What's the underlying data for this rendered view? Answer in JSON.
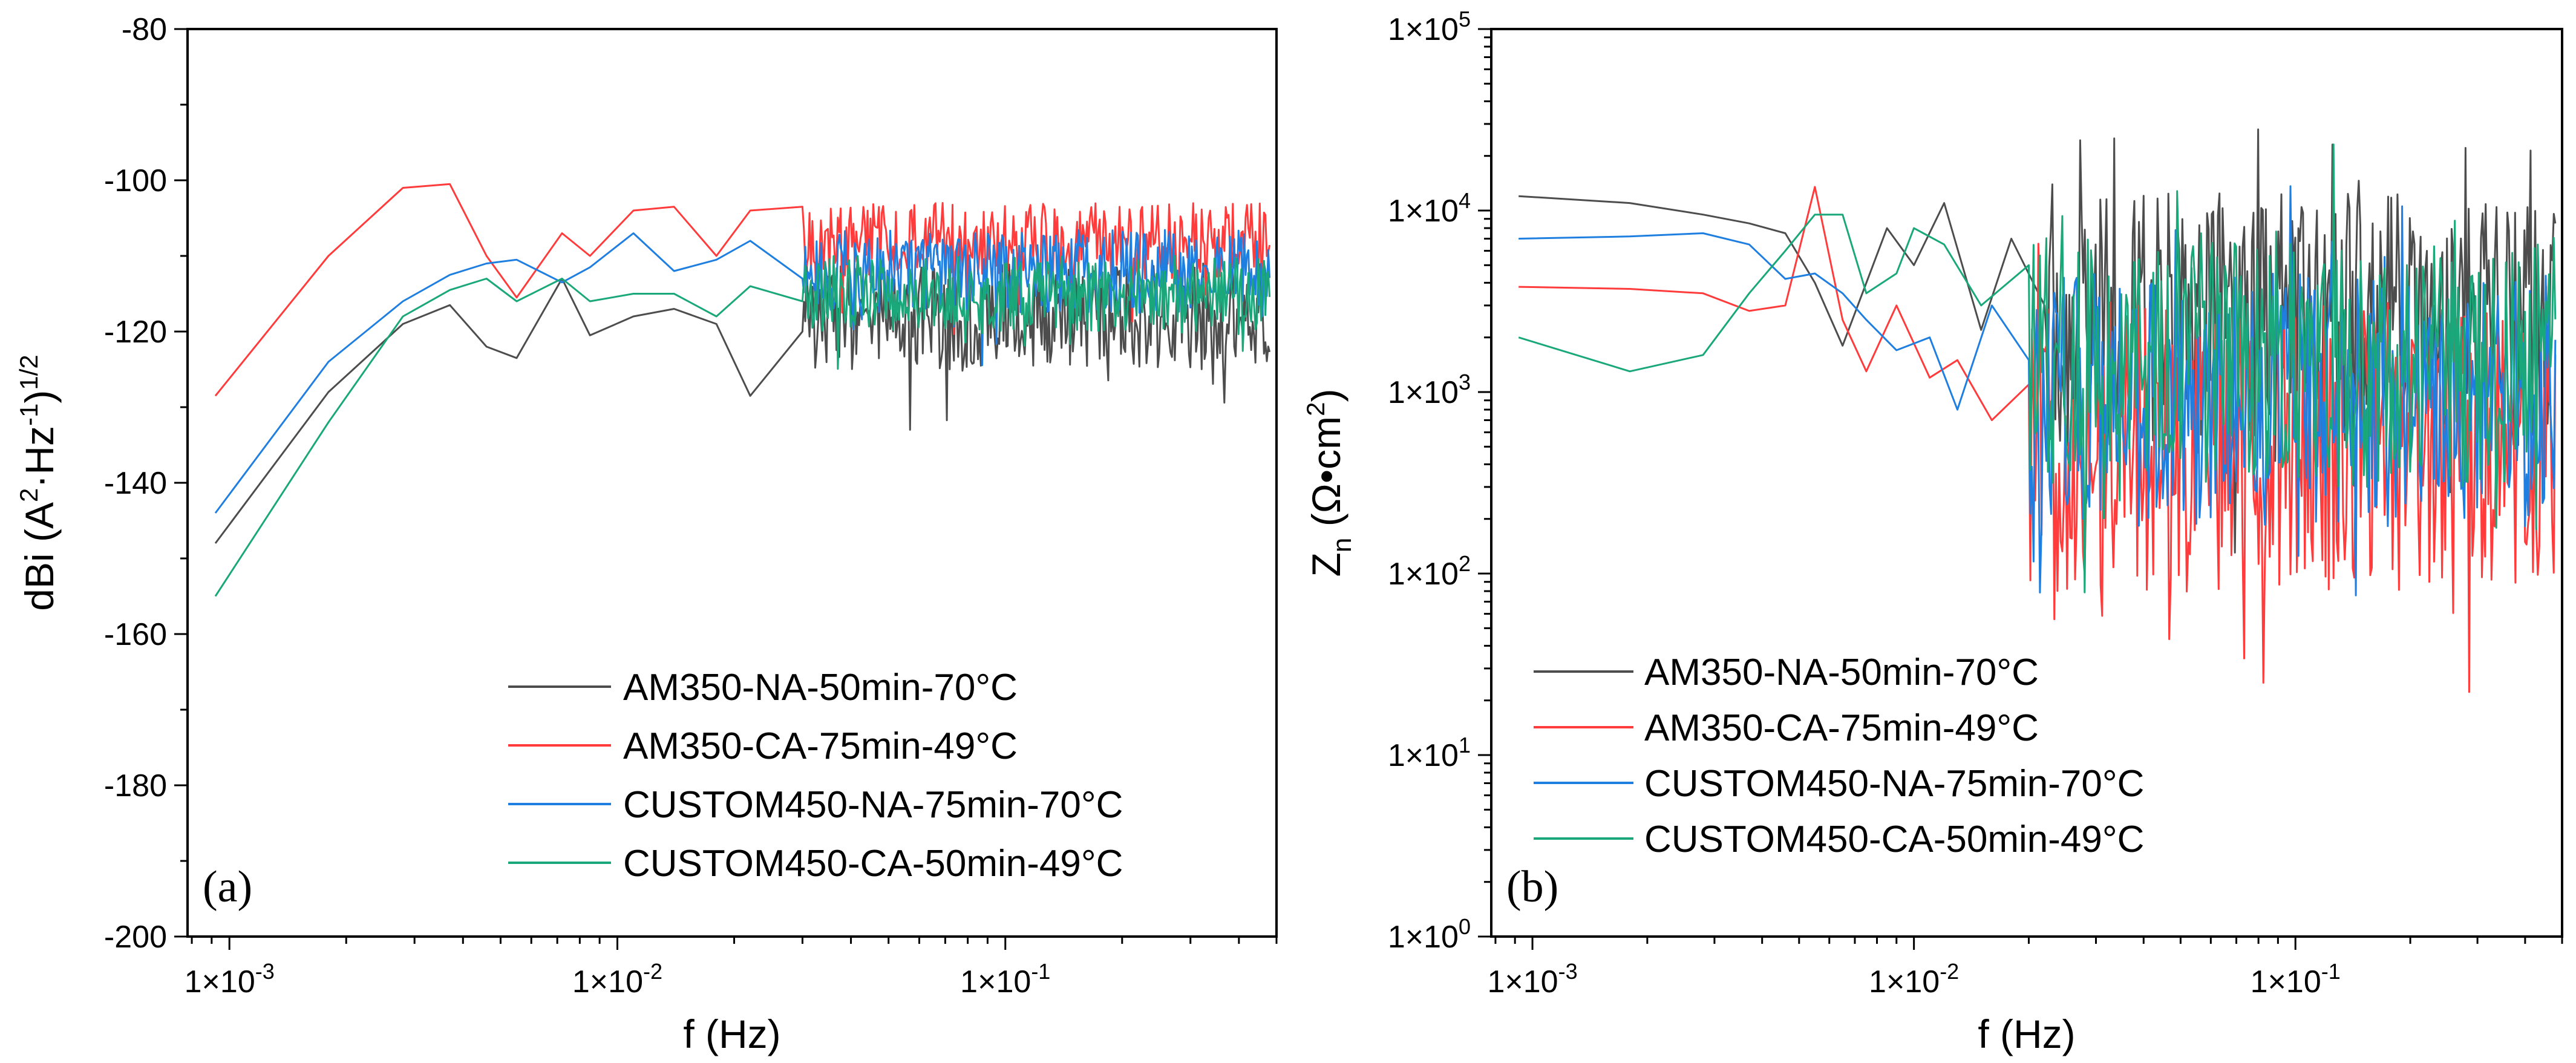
{
  "chart_data": [
    {
      "type": "line",
      "panel_label": "(a)",
      "xscale": "log",
      "yscale": "linear",
      "xlim": [
        0.00078,
        0.5
      ],
      "ylim": [
        -200,
        -80
      ],
      "xlabel": "f (Hz)",
      "ylabel": "dBi (A²·Hz⁻¹)¹ᐟ²",
      "ylabel_parts": {
        "base": "dBi (A",
        "sup1": "2",
        "mid": "·Hz",
        "sup2": "-1",
        "close": ")",
        "sup3": "1/2"
      },
      "xticks": [
        {
          "value": 0.001,
          "mantissa": "1×10",
          "exp": "-3"
        },
        {
          "value": 0.01,
          "mantissa": "1×10",
          "exp": "-2"
        },
        {
          "value": 0.1,
          "mantissa": "1×10",
          "exp": "-1"
        }
      ],
      "yticks": [
        {
          "value": -200,
          "label": "-200"
        },
        {
          "value": -180,
          "label": "-180"
        },
        {
          "value": -160,
          "label": "-160"
        },
        {
          "value": -140,
          "label": "-140"
        },
        {
          "value": -120,
          "label": "-120"
        },
        {
          "value": -100,
          "label": "-100"
        },
        {
          "value": -80,
          "label": "-80"
        }
      ],
      "legend_position": "bottom-right",
      "series": [
        {
          "name": "AM350-NA-50min-70°C",
          "color": "#4d4d4d",
          "x": [
            0.00092,
            0.0018,
            0.0028,
            0.0037,
            0.0046,
            0.0055,
            0.0072,
            0.0085,
            0.011,
            0.014,
            0.018,
            0.022,
            0.03
          ],
          "y": [
            -148,
            -128,
            -119,
            -116.5,
            -122,
            -123.5,
            -113,
            -120.5,
            -118,
            -117,
            -119,
            -128.5,
            -120
          ],
          "noise": {
            "from": 0.03,
            "to": 0.48,
            "center": -118,
            "amplitude": 7,
            "min": -140,
            "max": -103,
            "points": 330
          }
        },
        {
          "name": "AM350-CA-75min-49°C",
          "color": "#ff3b3b",
          "x": [
            0.00092,
            0.0018,
            0.0028,
            0.0037,
            0.0046,
            0.0055,
            0.0072,
            0.0085,
            0.011,
            0.014,
            0.018,
            0.022,
            0.03
          ],
          "y": [
            -128.5,
            -110,
            -101,
            -100.5,
            -110,
            -115.5,
            -107,
            -110,
            -104,
            -103.5,
            -110,
            -104,
            -103.5
          ],
          "noise": {
            "from": 0.03,
            "to": 0.48,
            "center": -108,
            "amplitude": 5,
            "min": -131,
            "max": -101.5,
            "points": 330
          }
        },
        {
          "name": "CUSTOM450-NA-75min-70°C",
          "color": "#1f7fe0",
          "x": [
            0.00092,
            0.0018,
            0.0028,
            0.0037,
            0.0046,
            0.0055,
            0.0072,
            0.0085,
            0.011,
            0.014,
            0.018,
            0.022,
            0.03
          ],
          "y": [
            -144,
            -124,
            -116,
            -112.5,
            -111,
            -110.5,
            -113.5,
            -111.5,
            -107,
            -112,
            -110.5,
            -108,
            -113
          ],
          "noise": {
            "from": 0.03,
            "to": 0.48,
            "center": -112,
            "amplitude": 5.5,
            "min": -134,
            "max": -103,
            "points": 330
          }
        },
        {
          "name": "CUSTOM450-CA-50min-49°C",
          "color": "#1aa87a",
          "x": [
            0.00092,
            0.0018,
            0.0028,
            0.0037,
            0.0046,
            0.0055,
            0.0072,
            0.0085,
            0.011,
            0.014,
            0.018,
            0.022,
            0.03
          ],
          "y": [
            -155,
            -132,
            -118,
            -114.5,
            -113,
            -116,
            -113,
            -116,
            -115,
            -115,
            -118,
            -114,
            -116
          ],
          "noise": {
            "from": 0.03,
            "to": 0.48,
            "center": -115,
            "amplitude": 5,
            "min": -134,
            "max": -104,
            "points": 330
          }
        }
      ]
    },
    {
      "type": "line",
      "panel_label": "(b)",
      "xscale": "log",
      "yscale": "log",
      "xlim": [
        0.00078,
        0.5
      ],
      "ylim": [
        1,
        100000
      ],
      "xlabel": "f (Hz)",
      "ylabel": "Zn (Ω•cm²)",
      "ylabel_parts": {
        "base": "Z",
        "sub": "n",
        "unit": " (Ω•cm",
        "sup": "2",
        "close": ")"
      },
      "xticks": [
        {
          "value": 0.001,
          "mantissa": "1×10",
          "exp": "-3"
        },
        {
          "value": 0.01,
          "mantissa": "1×10",
          "exp": "-2"
        },
        {
          "value": 0.1,
          "mantissa": "1×10",
          "exp": "-1"
        }
      ],
      "yticks": [
        {
          "value": 1,
          "mantissa": "1×10",
          "exp": "0"
        },
        {
          "value": 10,
          "mantissa": "1×10",
          "exp": "1"
        },
        {
          "value": 100,
          "mantissa": "1×10",
          "exp": "2"
        },
        {
          "value": 1000,
          "mantissa": "1×10",
          "exp": "3"
        },
        {
          "value": 10000,
          "mantissa": "1×10",
          "exp": "4"
        },
        {
          "value": 100000,
          "mantissa": "1×10",
          "exp": "5"
        }
      ],
      "legend_position": "bottom-left",
      "series": [
        {
          "name": "AM350-NA-50min-70°C",
          "color": "#4d4d4d",
          "x": [
            0.00092,
            0.0018,
            0.0028,
            0.0037,
            0.0046,
            0.0055,
            0.0065,
            0.0085,
            0.01,
            0.012,
            0.015,
            0.018,
            0.022
          ],
          "y": [
            12000,
            11000,
            9500,
            8500,
            7500,
            4000,
            1800,
            8000,
            5000,
            11000,
            2200,
            7000,
            3000
          ],
          "noise": {
            "from": 0.022,
            "to": 0.48,
            "center": 2500,
            "spread_decades": 0.7,
            "min": 40,
            "max": 28000,
            "points": 330
          }
        },
        {
          "name": "AM350-CA-75min-49°C",
          "color": "#ff3b3b",
          "x": [
            0.00092,
            0.0018,
            0.0028,
            0.0037,
            0.0046,
            0.0055,
            0.0065,
            0.0075,
            0.009,
            0.011,
            0.013,
            0.016,
            0.02
          ],
          "y": [
            3800,
            3700,
            3500,
            2800,
            3000,
            13500,
            2500,
            1300,
            3000,
            1200,
            1500,
            700,
            1100
          ],
          "noise": {
            "from": 0.02,
            "to": 0.48,
            "center": 500,
            "spread_decades": 0.8,
            "min": 12,
            "max": 8000,
            "points": 330
          }
        },
        {
          "name": "CUSTOM450-NA-75min-70°C",
          "color": "#1f7fe0",
          "x": [
            0.00092,
            0.0018,
            0.0028,
            0.0037,
            0.0046,
            0.0055,
            0.0065,
            0.0075,
            0.009,
            0.011,
            0.013,
            0.016,
            0.02
          ],
          "y": [
            7000,
            7200,
            7500,
            6500,
            4200,
            4500,
            3500,
            2500,
            1700,
            2000,
            800,
            3000,
            1500
          ],
          "noise": {
            "from": 0.02,
            "to": 0.48,
            "center": 900,
            "spread_decades": 0.7,
            "min": 50,
            "max": 27000,
            "points": 330
          }
        },
        {
          "name": "CUSTOM450-CA-50min-49°C",
          "color": "#1aa87a",
          "x": [
            0.00092,
            0.0018,
            0.0028,
            0.0037,
            0.0046,
            0.0055,
            0.0065,
            0.0075,
            0.009,
            0.01,
            0.012,
            0.015,
            0.02
          ],
          "y": [
            2000,
            1300,
            1600,
            3500,
            6000,
            9500,
            9500,
            3500,
            4500,
            8000,
            6500,
            3000,
            5000
          ],
          "noise": {
            "from": 0.02,
            "to": 0.48,
            "center": 1500,
            "spread_decades": 0.7,
            "min": 25,
            "max": 35000,
            "points": 330
          }
        }
      ]
    }
  ]
}
